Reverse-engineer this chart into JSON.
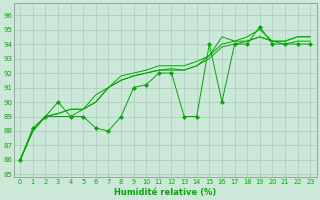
{
  "background_color": "#cce8d8",
  "grid_color": "#aaccbb",
  "line_color": "#00aa00",
  "xlabel": "Humidité relative (%)",
  "xlim": [
    -0.5,
    23.5
  ],
  "ylim": [
    84.8,
    96.8
  ],
  "yticks": [
    85,
    86,
    87,
    88,
    89,
    90,
    91,
    92,
    93,
    94,
    95,
    96
  ],
  "xticks": [
    0,
    1,
    2,
    3,
    4,
    5,
    6,
    7,
    8,
    9,
    10,
    11,
    12,
    13,
    14,
    15,
    16,
    17,
    18,
    19,
    20,
    21,
    22,
    23
  ],
  "series": [
    {
      "y": [
        86.0,
        88.2,
        89.0,
        90.0,
        89.0,
        89.0,
        88.2,
        88.0,
        89.0,
        91.0,
        91.2,
        92.0,
        92.0,
        89.0,
        89.0,
        94.0,
        90.0,
        94.0,
        94.0,
        95.2,
        94.0,
        94.0,
        94.0,
        94.0
      ],
      "marker": true
    },
    {
      "y": [
        86.0,
        88.0,
        89.0,
        89.2,
        89.5,
        89.5,
        90.0,
        91.0,
        91.5,
        91.8,
        92.0,
        92.2,
        92.2,
        92.2,
        92.5,
        93.2,
        94.0,
        94.2,
        94.2,
        94.5,
        94.2,
        94.2,
        94.5,
        94.5
      ],
      "marker": false
    },
    {
      "y": [
        86.0,
        88.0,
        89.0,
        89.2,
        89.5,
        89.5,
        90.0,
        91.0,
        91.5,
        91.8,
        92.0,
        92.2,
        92.3,
        92.2,
        92.5,
        93.0,
        93.8,
        94.0,
        94.2,
        94.5,
        94.2,
        94.0,
        94.2,
        94.2
      ],
      "marker": false
    },
    {
      "y": [
        86.0,
        88.0,
        89.0,
        89.0,
        89.0,
        89.5,
        90.5,
        91.0,
        91.8,
        92.0,
        92.2,
        92.5,
        92.5,
        92.5,
        92.8,
        93.2,
        94.5,
        94.2,
        94.5,
        95.0,
        94.2,
        94.2,
        94.5,
        94.5
      ],
      "marker": false
    }
  ]
}
